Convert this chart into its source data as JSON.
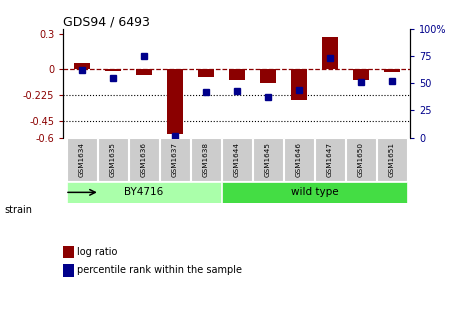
{
  "title": "GDS94 / 6493",
  "samples": [
    "GSM1634",
    "GSM1635",
    "GSM1636",
    "GSM1637",
    "GSM1638",
    "GSM1644",
    "GSM1645",
    "GSM1646",
    "GSM1647",
    "GSM1650",
    "GSM1651"
  ],
  "log_ratio": [
    0.05,
    -0.02,
    -0.05,
    -0.57,
    -0.07,
    -0.1,
    -0.12,
    -0.27,
    0.28,
    -0.1,
    -0.03
  ],
  "percentile_rank": [
    62,
    55,
    75,
    2,
    42,
    43,
    37,
    44,
    73,
    51,
    52
  ],
  "groups": [
    {
      "label": "BY4716",
      "start": 0,
      "end": 5,
      "color": "#aaffaa"
    },
    {
      "label": "wild type",
      "start": 5,
      "end": 11,
      "color": "#44dd44"
    }
  ],
  "ylim_left": [
    -0.6,
    0.35
  ],
  "ylim_right": [
    0,
    100
  ],
  "yticks_left": [
    -0.6,
    -0.45,
    -0.225,
    0.0,
    0.3
  ],
  "yticks_labels_left": [
    "-0.6",
    "-0.45",
    "-0.225",
    "0",
    "0.3"
  ],
  "yticks_right": [
    0,
    25,
    50,
    75,
    100
  ],
  "yticks_labels_right": [
    "0",
    "25",
    "50",
    "75",
    "100%"
  ],
  "hlines": [
    -0.45,
    -0.225
  ],
  "bar_color": "#8B0000",
  "dot_color": "#00008B",
  "label_bg": "#cccccc",
  "strain_label": "strain"
}
